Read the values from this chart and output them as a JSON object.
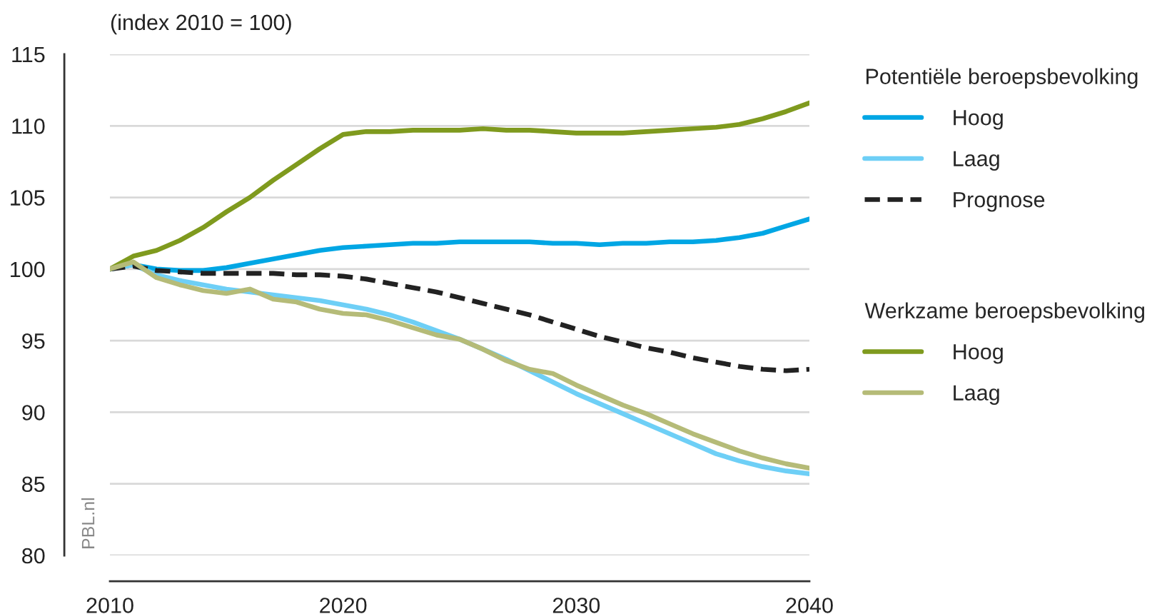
{
  "chart_data": {
    "type": "line",
    "ylabel": "(index 2010 = 100)",
    "legend_title": [
      "Potentiële beroepsbevolking",
      "Werkzame beroepsbevolking"
    ],
    "x": [
      2010,
      2011,
      2012,
      2013,
      2014,
      2015,
      2016,
      2017,
      2018,
      2019,
      2020,
      2021,
      2022,
      2023,
      2024,
      2025,
      2026,
      2027,
      2028,
      2029,
      2030,
      2031,
      2032,
      2033,
      2034,
      2035,
      2036,
      2037,
      2038,
      2039,
      2040
    ],
    "series": [
      {
        "name": "Hoog",
        "color": "#00a6e4",
        "values": [
          100,
          100.3,
          100,
          99.9,
          99.9,
          100.1,
          100.4,
          100.7,
          101,
          101.3,
          101.5,
          101.6,
          101.7,
          101.8,
          101.8,
          101.9,
          101.9,
          101.9,
          101.9,
          101.8,
          101.8,
          101.7,
          101.8,
          101.8,
          101.9,
          101.9,
          102,
          102.2,
          102.5,
          103,
          103.5
        ]
      },
      {
        "name": "Laag",
        "color": "#6ecff6",
        "values": [
          100,
          100.3,
          99.6,
          99.2,
          98.9,
          98.6,
          98.4,
          98.2,
          98.0,
          97.8,
          97.5,
          97.2,
          96.8,
          96.3,
          95.7,
          95.1,
          94.4,
          93.7,
          92.9,
          92.1,
          91.3,
          90.6,
          89.9,
          89.2,
          88.5,
          87.8,
          87.1,
          86.6,
          86.2,
          85.9,
          85.7
        ]
      },
      {
        "name": "Prognose",
        "color": "#222222",
        "line_style": "dashed",
        "values": [
          100,
          100.2,
          99.9,
          99.8,
          99.7,
          99.7,
          99.7,
          99.7,
          99.6,
          99.6,
          99.5,
          99.3,
          99,
          98.7,
          98.4,
          98,
          97.6,
          97.2,
          96.8,
          96.3,
          95.8,
          95.3,
          94.9,
          94.5,
          94.2,
          93.8,
          93.5,
          93.2,
          93.0,
          92.9,
          93.0
        ]
      },
      {
        "name": "Hoog",
        "color": "#7f9a1e",
        "values": [
          100,
          100.9,
          101.3,
          102,
          102.9,
          104,
          105,
          106.2,
          107.3,
          108.4,
          109.4,
          109.6,
          109.6,
          109.7,
          109.7,
          109.7,
          109.8,
          109.7,
          109.7,
          109.6,
          109.5,
          109.5,
          109.5,
          109.6,
          109.7,
          109.8,
          109.9,
          110.1,
          110.5,
          111,
          111.6
        ]
      },
      {
        "name": "Laag",
        "color": "#b5bb78",
        "values": [
          100,
          100.5,
          99.4,
          98.9,
          98.5,
          98.3,
          98.6,
          97.9,
          97.7,
          97.2,
          96.9,
          96.8,
          96.4,
          95.9,
          95.4,
          95.1,
          94.4,
          93.6,
          93.0,
          92.7,
          91.9,
          91.2,
          90.5,
          89.9,
          89.2,
          88.5,
          87.9,
          87.3,
          86.8,
          86.4,
          86.1
        ]
      }
    ],
    "xlim": [
      2010,
      2040
    ],
    "xticks": [
      2010,
      2020,
      2030,
      2040
    ],
    "ylim": [
      80,
      115
    ],
    "yticks": [
      80,
      85,
      90,
      95,
      100,
      105,
      110,
      115
    ],
    "grid": "y",
    "legend": "right",
    "line_style": "solid",
    "annotations": [
      "PBL.nl"
    ]
  }
}
